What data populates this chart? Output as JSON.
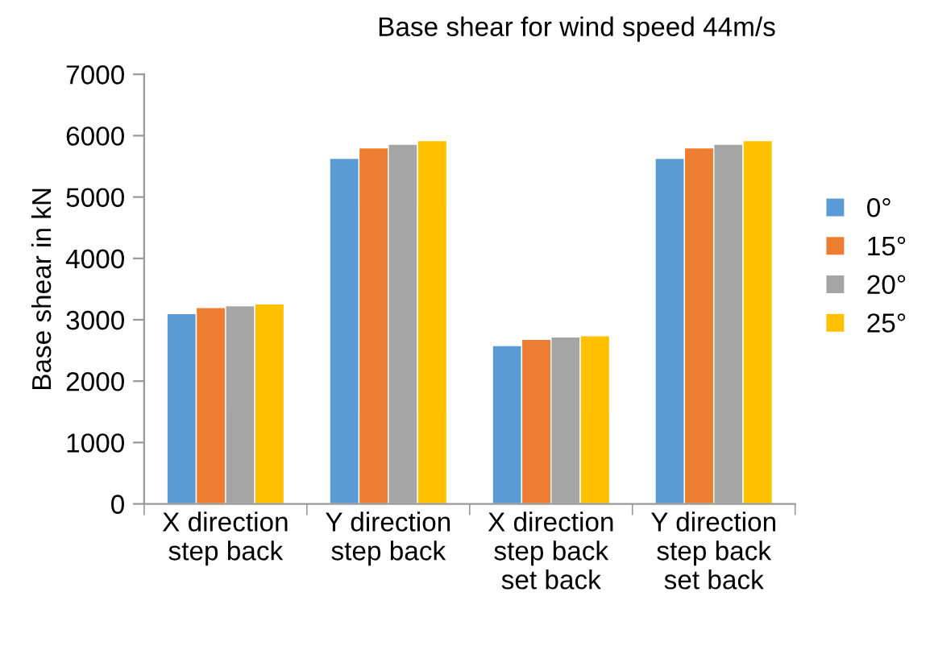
{
  "chart_data": {
    "type": "bar",
    "title": "Base shear for wind speed 44m/s",
    "ylabel": "Base shear in kN",
    "categories": [
      "X direction\nstep back",
      "Y direction\nstep back",
      "X direction\nstep back\nset back",
      "Y direction\nstep back\nset back"
    ],
    "series": [
      {
        "name": "0°",
        "color": "#5b9bd5",
        "values": [
          3100,
          5630,
          2580,
          5630
        ]
      },
      {
        "name": "15°",
        "color": "#ed7d31",
        "values": [
          3200,
          5800,
          2680,
          5800
        ]
      },
      {
        "name": "20°",
        "color": "#a5a5a5",
        "values": [
          3230,
          5860,
          2720,
          5860
        ]
      },
      {
        "name": "25°",
        "color": "#ffc000",
        "values": [
          3260,
          5920,
          2740,
          5920
        ]
      }
    ],
    "ylim": [
      0,
      7000
    ],
    "yticks": [
      0,
      1000,
      2000,
      3000,
      4000,
      5000,
      6000,
      7000
    ],
    "grid": false,
    "legend": "right"
  }
}
